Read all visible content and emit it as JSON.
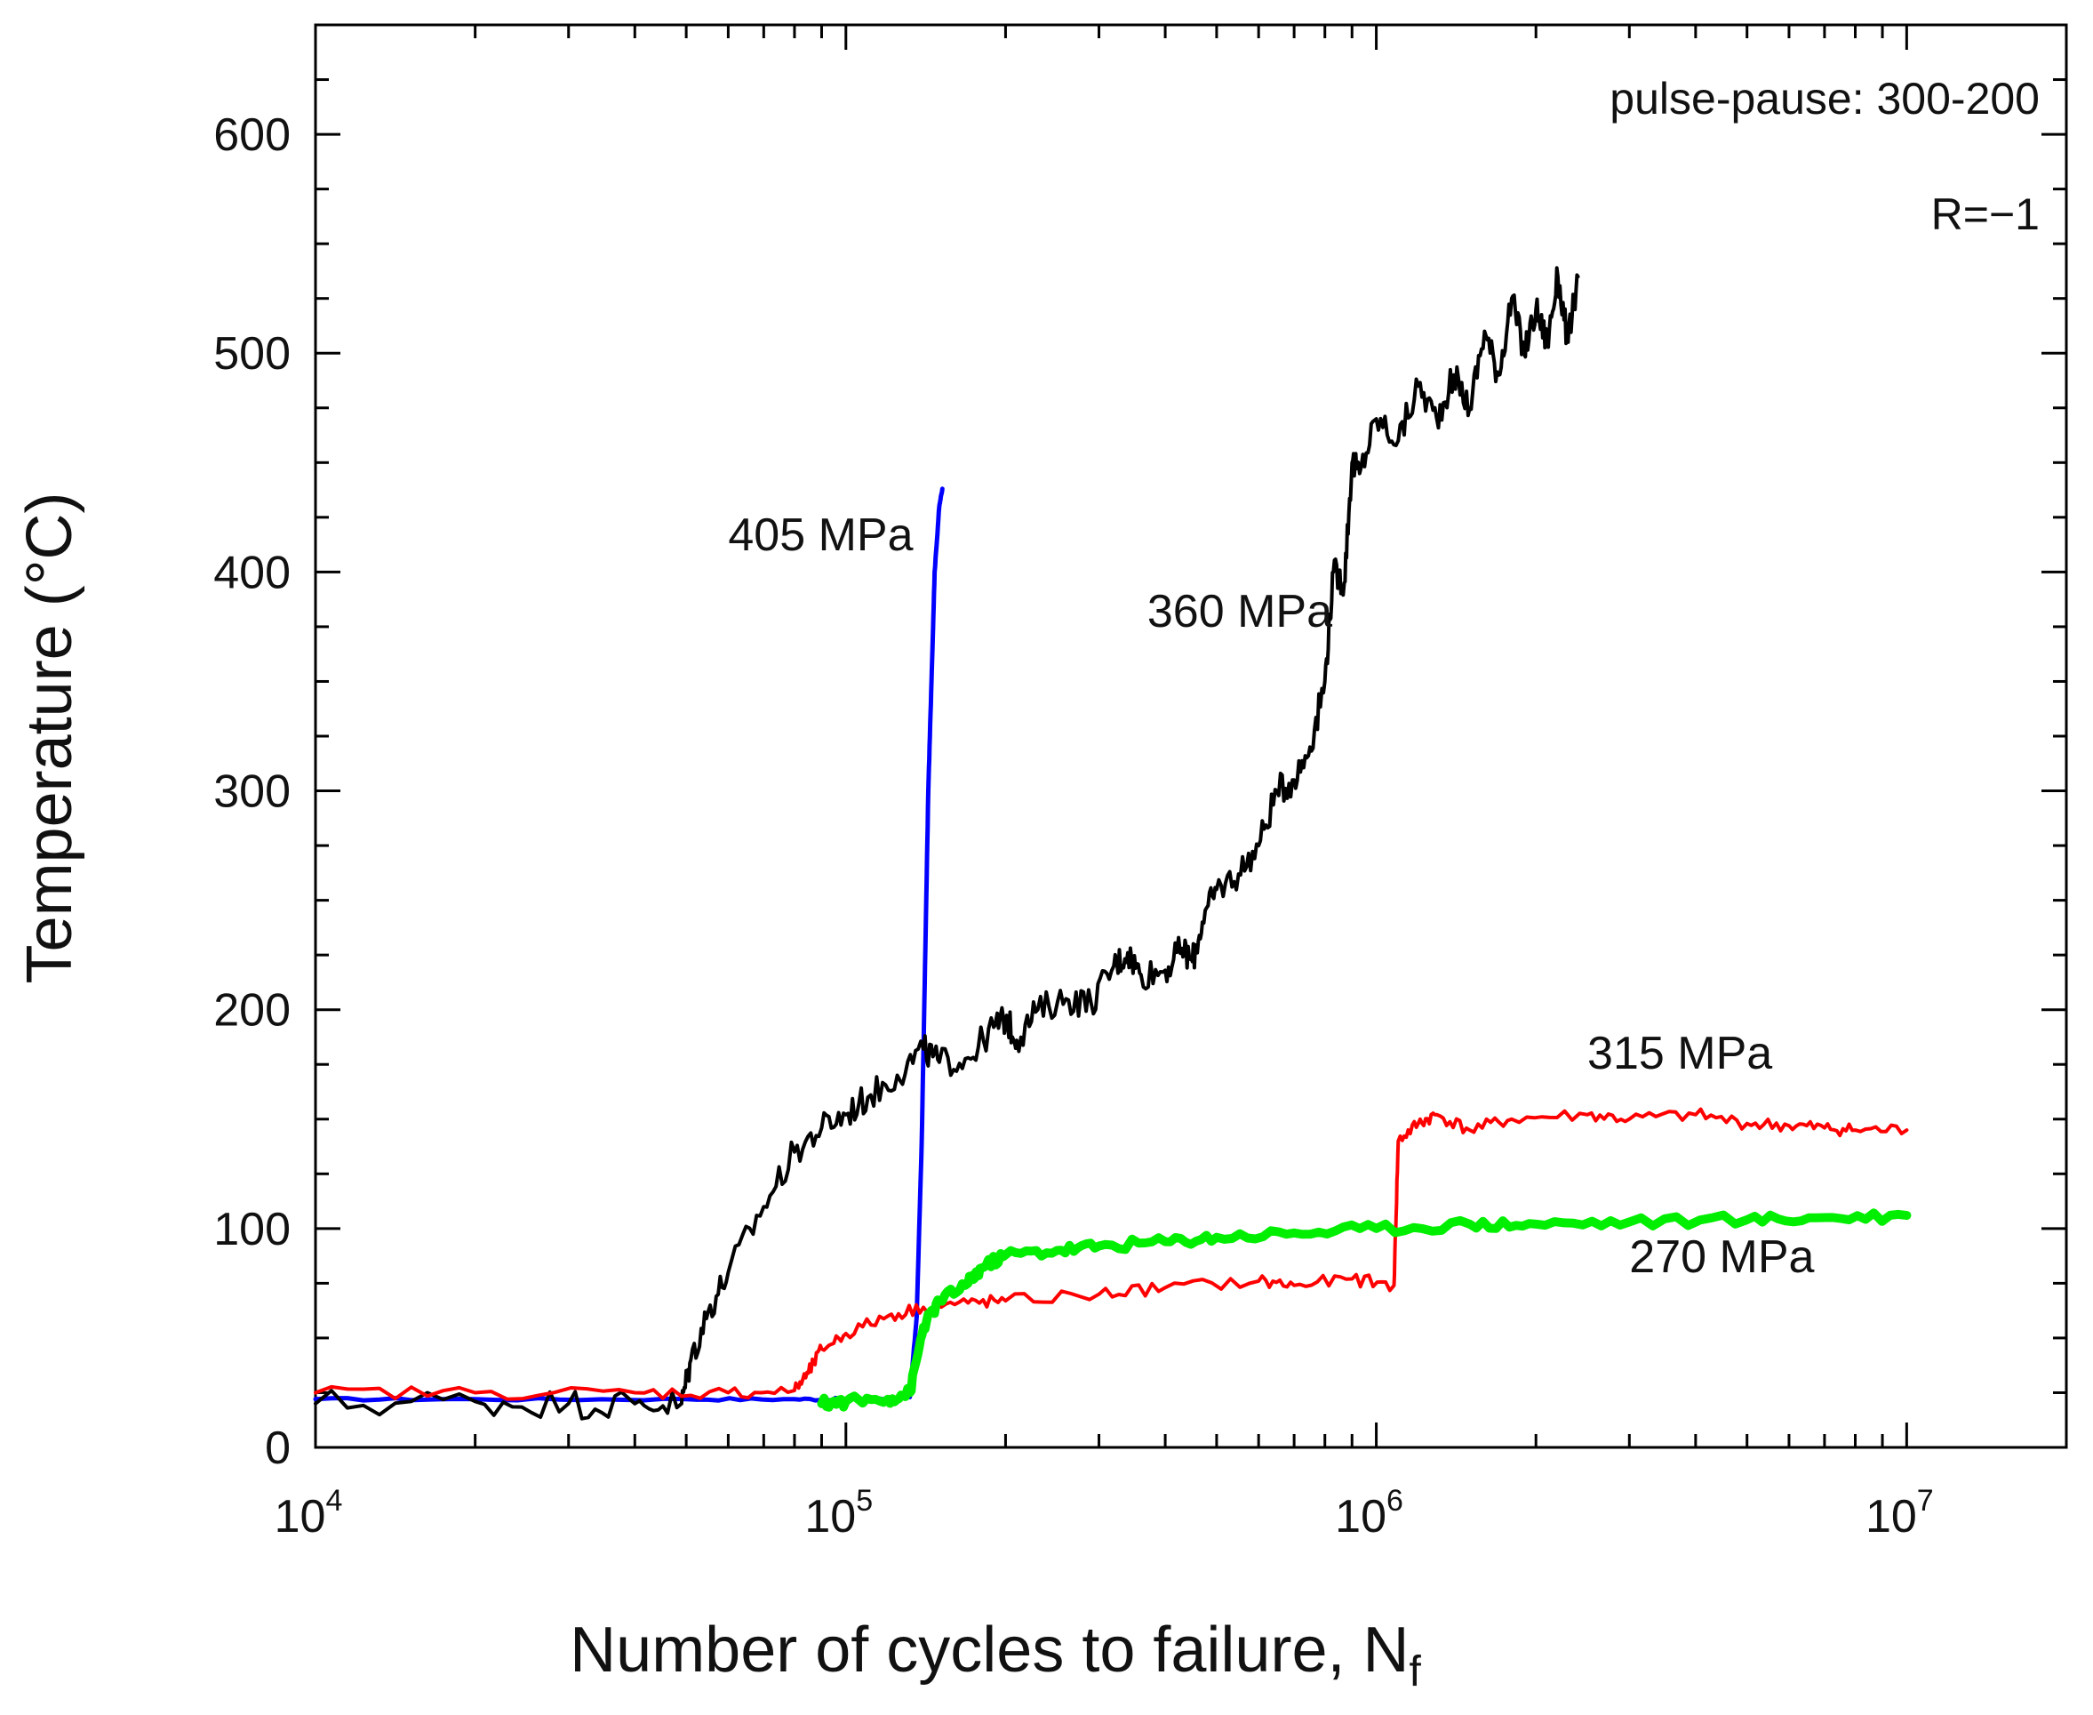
{
  "chart_data": {
    "type": "line",
    "title": "",
    "xlabel": "Number of cycles to failure, N",
    "xlabel_subscript": "f",
    "ylabel": "Temperature (°C)",
    "xscale": "log",
    "xlim": [
      10000,
      20000000
    ],
    "ylim": [
      0,
      650
    ],
    "grid": false,
    "legend": "none (series labelled directly on plot)",
    "x_ticks": [
      {
        "base": "10",
        "exp": "4"
      },
      {
        "base": "10",
        "exp": "5"
      },
      {
        "base": "10",
        "exp": "6"
      },
      {
        "base": "10",
        "exp": "7"
      }
    ],
    "y_ticks": [
      0,
      100,
      200,
      300,
      400,
      500,
      600
    ],
    "annotations": {
      "protocol": "pulse-pause: 300-200",
      "ratio": "R=−1"
    },
    "series": [
      {
        "name": "405 MPa",
        "color": "#0000ff",
        "label_anchor": {
          "x": 60000,
          "y": 410
        },
        "points": [
          [
            10000,
            22
          ],
          [
            20000,
            22
          ],
          [
            50000,
            22
          ],
          [
            80000,
            22
          ],
          [
            100000,
            22
          ],
          [
            120000,
            22
          ],
          [
            132000,
            23
          ],
          [
            136000,
            60
          ],
          [
            139000,
            140
          ],
          [
            141000,
            220
          ],
          [
            143000,
            300
          ],
          [
            145000,
            350
          ],
          [
            147000,
            400
          ],
          [
            150000,
            430
          ],
          [
            152000,
            438
          ]
        ]
      },
      {
        "name": "360 MPa",
        "color": "#000000",
        "label_anchor": {
          "x": 370000,
          "y": 375
        },
        "points": [
          [
            10000,
            20
          ],
          [
            20000,
            21
          ],
          [
            30000,
            20
          ],
          [
            40000,
            20
          ],
          [
            49000,
            20
          ],
          [
            51000,
            40
          ],
          [
            55000,
            62
          ],
          [
            60000,
            80
          ],
          [
            70000,
            110
          ],
          [
            80000,
            135
          ],
          [
            90000,
            146
          ],
          [
            100000,
            152
          ],
          [
            110000,
            160
          ],
          [
            125000,
            170
          ],
          [
            140000,
            182
          ],
          [
            150000,
            176
          ],
          [
            170000,
            178
          ],
          [
            190000,
            192
          ],
          [
            200000,
            196
          ],
          [
            210000,
            186
          ],
          [
            230000,
            200
          ],
          [
            260000,
            205
          ],
          [
            290000,
            203
          ],
          [
            320000,
            220
          ],
          [
            340000,
            226
          ],
          [
            360000,
            216
          ],
          [
            400000,
            218
          ],
          [
            430000,
            228
          ],
          [
            450000,
            222
          ],
          [
            470000,
            240
          ],
          [
            500000,
            255
          ],
          [
            550000,
            262
          ],
          [
            600000,
            275
          ],
          [
            650000,
            300
          ],
          [
            700000,
            305
          ],
          [
            750000,
            320
          ],
          [
            800000,
            350
          ],
          [
            830000,
            400
          ],
          [
            870000,
            395
          ],
          [
            900000,
            450
          ],
          [
            930000,
            445
          ],
          [
            1000000,
            470
          ],
          [
            1100000,
            460
          ],
          [
            1200000,
            485
          ],
          [
            1300000,
            470
          ],
          [
            1400000,
            490
          ],
          [
            1500000,
            475
          ],
          [
            1600000,
            510
          ],
          [
            1700000,
            490
          ],
          [
            1800000,
            525
          ],
          [
            1900000,
            500
          ],
          [
            2000000,
            520
          ],
          [
            2100000,
            505
          ],
          [
            2200000,
            535
          ],
          [
            2300000,
            505
          ],
          [
            2400000,
            535
          ]
        ]
      },
      {
        "name": "315 MPa",
        "color": "#ff0000",
        "label_anchor": {
          "x": 2500000,
          "y": 173
        },
        "points": [
          [
            10000,
            25
          ],
          [
            20000,
            25
          ],
          [
            40000,
            25
          ],
          [
            60000,
            25
          ],
          [
            80000,
            26
          ],
          [
            85000,
            34
          ],
          [
            90000,
            45
          ],
          [
            100000,
            52
          ],
          [
            120000,
            60
          ],
          [
            140000,
            64
          ],
          [
            170000,
            66
          ],
          [
            200000,
            67
          ],
          [
            300000,
            70
          ],
          [
            400000,
            73
          ],
          [
            600000,
            76
          ],
          [
            700000,
            74
          ],
          [
            900000,
            77
          ],
          [
            1080000,
            74
          ],
          [
            1100000,
            140
          ],
          [
            1200000,
            148
          ],
          [
            1300000,
            152
          ],
          [
            1500000,
            145
          ],
          [
            1800000,
            150
          ],
          [
            2500000,
            152
          ],
          [
            3000000,
            150
          ],
          [
            4000000,
            152
          ],
          [
            5000000,
            148
          ],
          [
            6000000,
            147
          ],
          [
            7000000,
            146
          ],
          [
            8000000,
            145
          ],
          [
            10000000,
            145
          ]
        ]
      },
      {
        "name": "270 MPa",
        "color": "#00ee00",
        "label_anchor": {
          "x": 3000000,
          "y": 80
        },
        "points": [
          [
            90000,
            20
          ],
          [
            100000,
            21
          ],
          [
            120000,
            22
          ],
          [
            132000,
            25
          ],
          [
            140000,
            55
          ],
          [
            150000,
            67
          ],
          [
            170000,
            75
          ],
          [
            180000,
            82
          ],
          [
            200000,
            88
          ],
          [
            250000,
            90
          ],
          [
            300000,
            92
          ],
          [
            400000,
            94
          ],
          [
            500000,
            96
          ],
          [
            700000,
            98
          ],
          [
            1000000,
            100
          ],
          [
            1500000,
            102
          ],
          [
            2000000,
            102
          ],
          [
            3000000,
            103
          ],
          [
            5000000,
            104
          ],
          [
            7000000,
            105
          ],
          [
            10000000,
            106
          ]
        ]
      }
    ]
  }
}
